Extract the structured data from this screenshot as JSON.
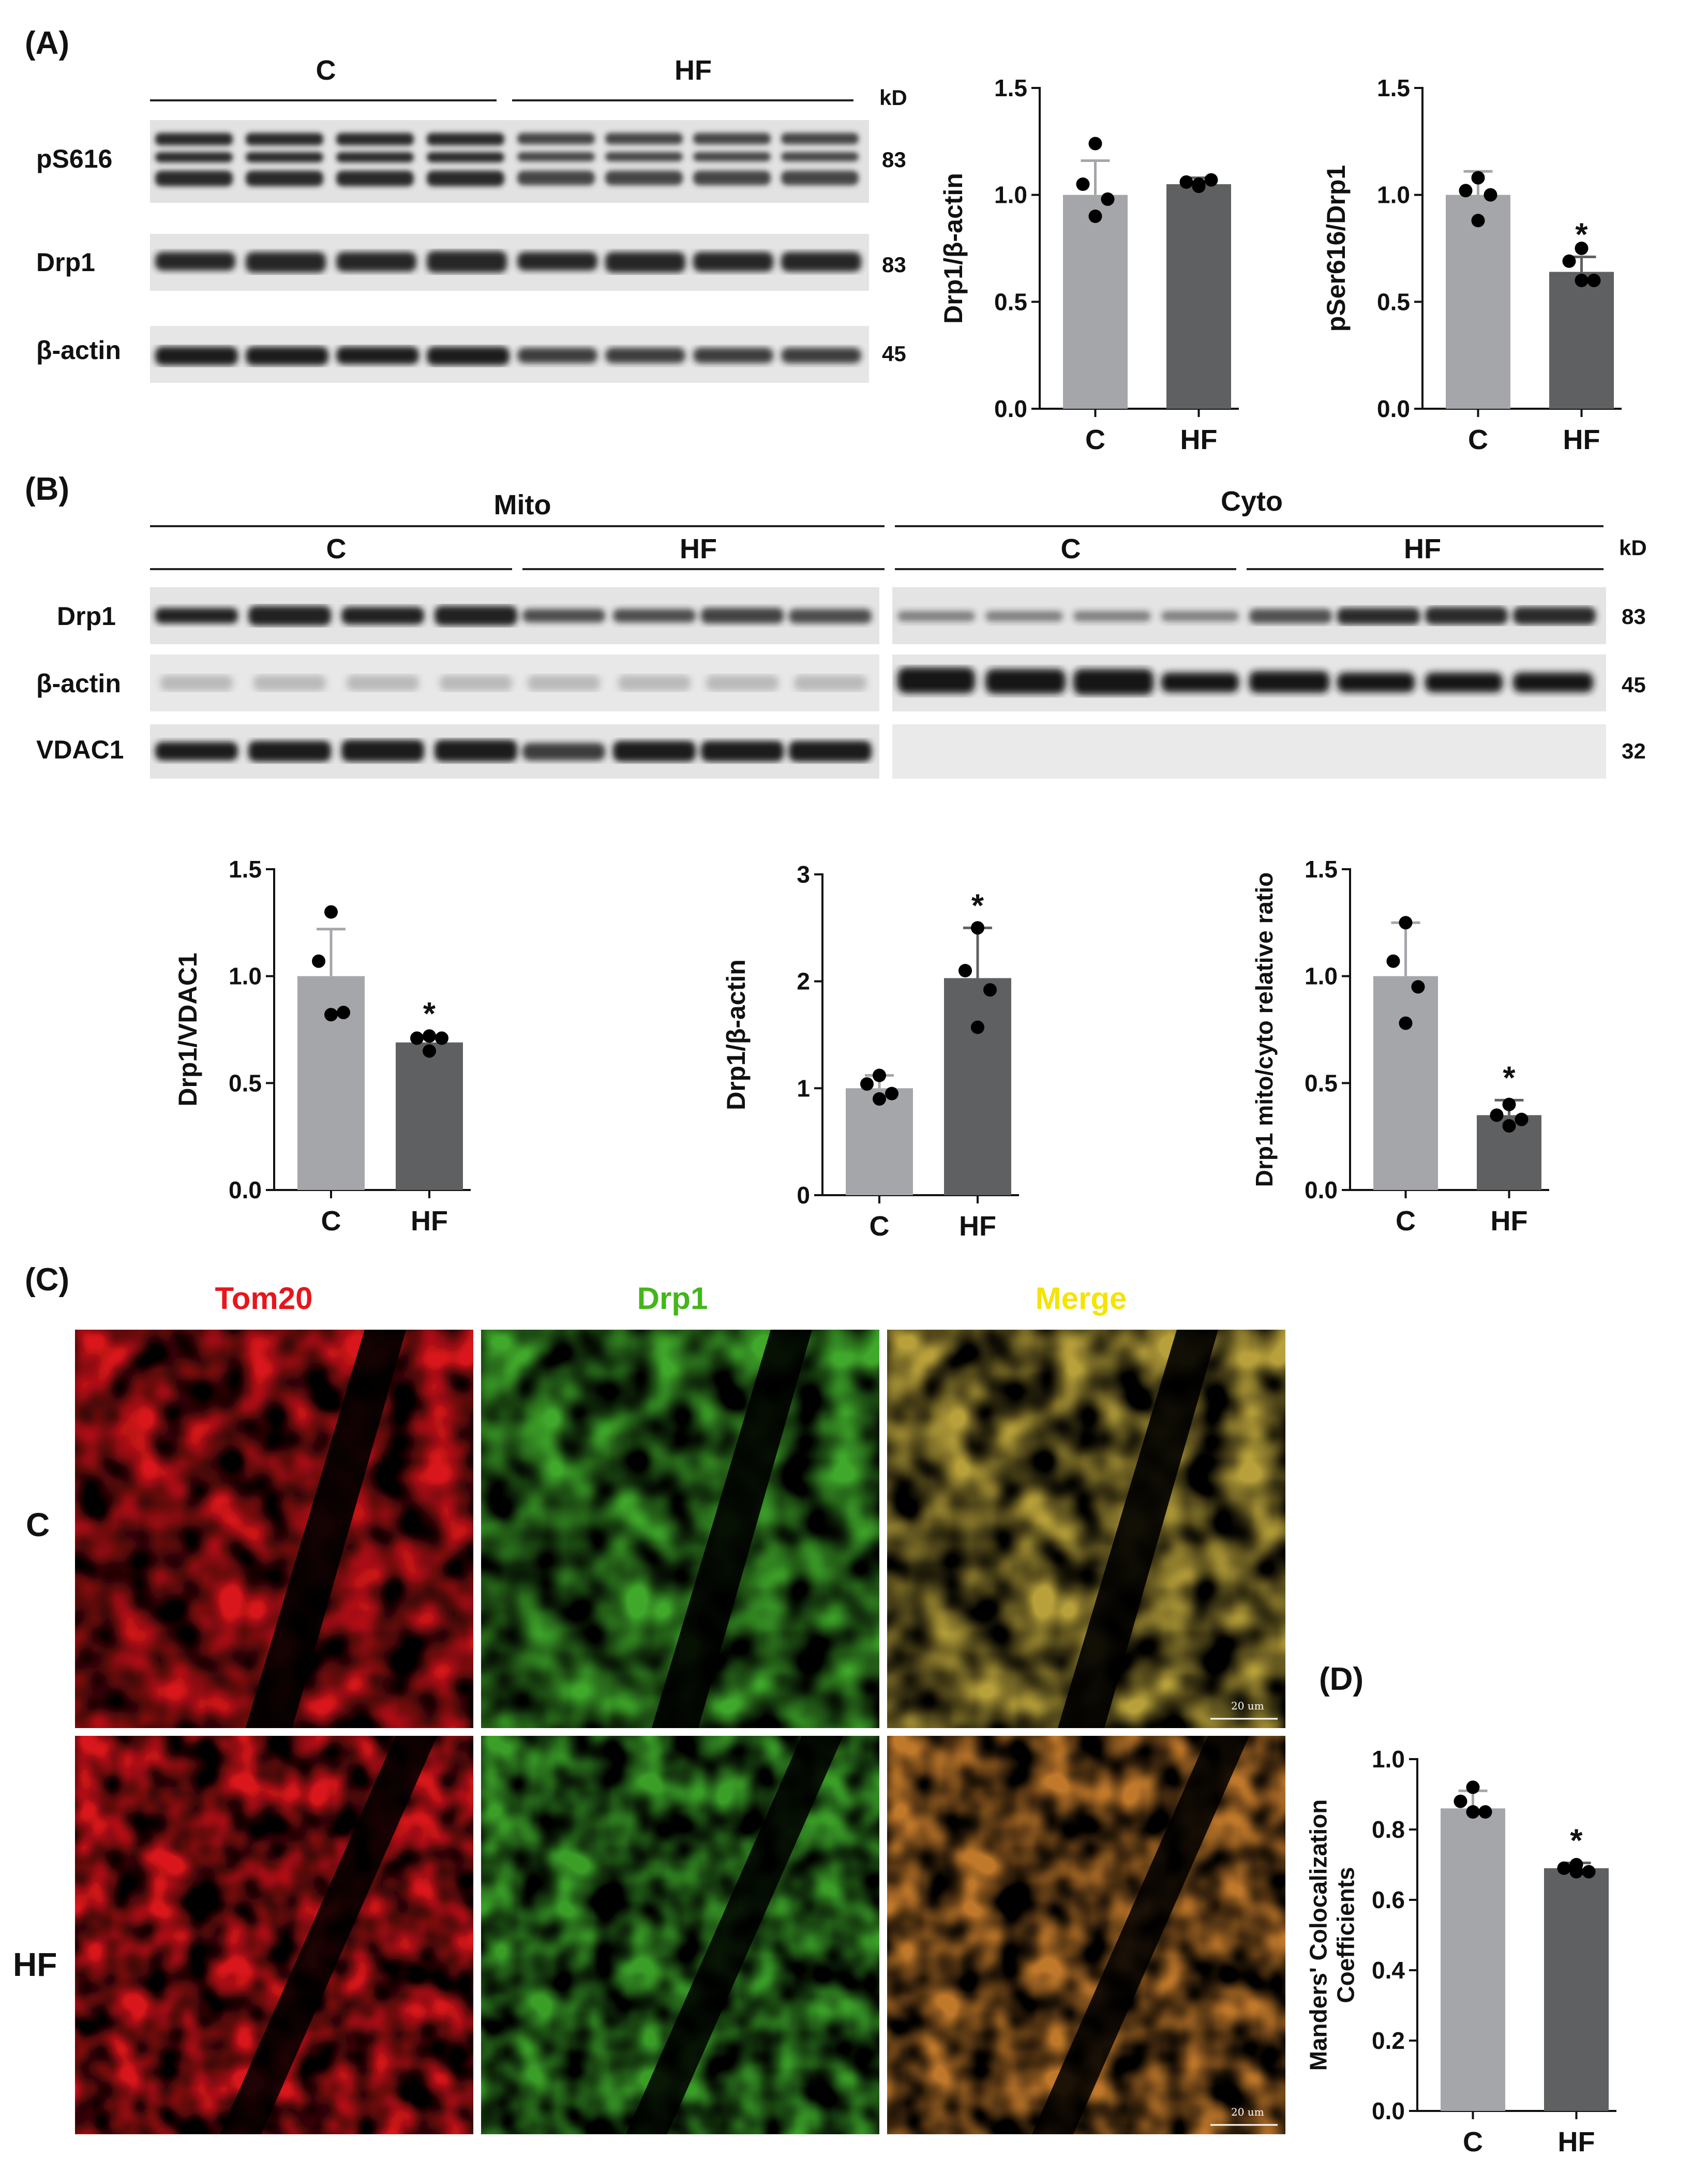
{
  "panelA": {
    "label": "(A)",
    "groups": [
      "C",
      "HF"
    ],
    "kd_header": "kD",
    "blots": [
      {
        "name": "pS616",
        "kd": "83"
      },
      {
        "name": "Drp1",
        "kd": "83"
      },
      {
        "name": "β-actin",
        "kd": "45"
      }
    ]
  },
  "panelB": {
    "label": "(B)",
    "fractions": [
      "Mito",
      "Cyto"
    ],
    "groups": [
      "C",
      "HF",
      "C",
      "HF"
    ],
    "kd_header": "kD",
    "blots": [
      {
        "name": "Drp1",
        "kd": "83"
      },
      {
        "name": "β-actin",
        "kd": "45"
      },
      {
        "name": "VDAC1",
        "kd": "32"
      }
    ]
  },
  "panelC": {
    "label": "(C)",
    "channels": [
      "Tom20",
      "Drp1",
      "Merge"
    ],
    "rows": [
      "C",
      "HF"
    ],
    "scale_bar": "20 um",
    "colors": {
      "tom20": "#e8161b",
      "drp1": "#43b61b",
      "merge": "#f4e400"
    }
  },
  "panelD": {
    "label": "(D)"
  },
  "colors": {
    "control_bar": "#a5a6aa",
    "hf_bar": "#5f6061",
    "dots": "#000000"
  },
  "chart_data": [
    {
      "id": "A1",
      "type": "bar",
      "categories": [
        "C",
        "HF"
      ],
      "ylabel": "Drp1/β-actin",
      "ylim": [
        0,
        1.5
      ],
      "yticks": [
        0.0,
        0.5,
        1.0,
        1.5
      ],
      "tick_labels": [
        "0.0",
        "0.5",
        "1.0",
        "1.5"
      ],
      "values": [
        1.0,
        1.05
      ],
      "errors": [
        0.16,
        0.03
      ],
      "points": [
        [
          1.24,
          1.05,
          0.98,
          0.9
        ],
        [
          1.04,
          1.06,
          1.07,
          1.05
        ]
      ],
      "significant": [
        false,
        false
      ]
    },
    {
      "id": "A2",
      "type": "bar",
      "categories": [
        "C",
        "HF"
      ],
      "ylabel": "pSer616/Drp1",
      "ylim": [
        0,
        1.5
      ],
      "yticks": [
        0.0,
        0.5,
        1.0,
        1.5
      ],
      "tick_labels": [
        "0.0",
        "0.5",
        "1.0",
        "1.5"
      ],
      "values": [
        1.0,
        0.64
      ],
      "errors": [
        0.11,
        0.07
      ],
      "points": [
        [
          1.08,
          1.02,
          1.0,
          0.88
        ],
        [
          0.75,
          0.69,
          0.6,
          0.6
        ]
      ],
      "significant": [
        false,
        true
      ]
    },
    {
      "id": "B1",
      "type": "bar",
      "categories": [
        "C",
        "HF"
      ],
      "ylabel": "Drp1/VDAC1",
      "ylim": [
        0,
        1.5
      ],
      "yticks": [
        0.0,
        0.5,
        1.0,
        1.5
      ],
      "tick_labels": [
        "0.0",
        "0.5",
        "1.0",
        "1.5"
      ],
      "values": [
        1.0,
        0.69
      ],
      "errors": [
        0.22,
        0.03
      ],
      "points": [
        [
          1.3,
          1.07,
          0.83,
          0.82
        ],
        [
          0.72,
          0.71,
          0.71,
          0.65
        ]
      ],
      "significant": [
        false,
        true
      ]
    },
    {
      "id": "B2",
      "type": "bar",
      "categories": [
        "C",
        "HF"
      ],
      "ylabel": "Drp1/β-actin",
      "ylim": [
        0,
        3
      ],
      "yticks": [
        0,
        1,
        2,
        3
      ],
      "tick_labels": [
        "0",
        "1",
        "2",
        "3"
      ],
      "values": [
        1.0,
        2.03
      ],
      "errors": [
        0.12,
        0.47
      ],
      "points": [
        [
          1.12,
          1.04,
          0.95,
          0.9
        ],
        [
          2.5,
          2.1,
          1.92,
          1.57
        ]
      ],
      "significant": [
        false,
        true
      ]
    },
    {
      "id": "B3",
      "type": "bar",
      "categories": [
        "C",
        "HF"
      ],
      "ylabel": "Drp1 mito/cyto relative ratio",
      "ylim": [
        0,
        1.5
      ],
      "yticks": [
        0.0,
        0.5,
        1.0,
        1.5
      ],
      "tick_labels": [
        "0.0",
        "0.5",
        "1.0",
        "1.5"
      ],
      "values": [
        1.0,
        0.35
      ],
      "errors": [
        0.25,
        0.07
      ],
      "points": [
        [
          1.25,
          1.07,
          0.95,
          0.78
        ],
        [
          0.4,
          0.35,
          0.33,
          0.3
        ]
      ],
      "significant": [
        false,
        true
      ]
    },
    {
      "id": "D",
      "type": "bar",
      "categories": [
        "C",
        "HF"
      ],
      "ylabel": "Manders' Colocalization Coefficients",
      "ylim": [
        0,
        1.0
      ],
      "yticks": [
        0.0,
        0.2,
        0.4,
        0.6,
        0.8,
        1.0
      ],
      "tick_labels": [
        "0.0",
        "0.2",
        "0.4",
        "0.6",
        "0.8",
        "1.0"
      ],
      "values": [
        0.86,
        0.69
      ],
      "errors": [
        0.05,
        0.015
      ],
      "points": [
        [
          0.92,
          0.88,
          0.85,
          0.85
        ],
        [
          0.7,
          0.69,
          0.68,
          0.68
        ]
      ],
      "significant": [
        false,
        true
      ]
    }
  ]
}
